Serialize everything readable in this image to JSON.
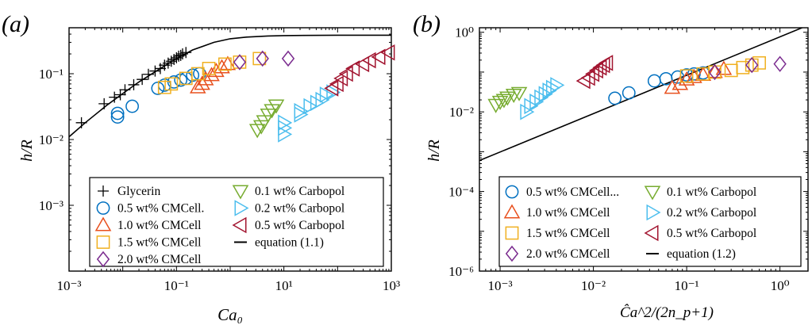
{
  "figure": {
    "panels": [
      {
        "label": "(a)",
        "xlabel": "Ca₀",
        "ylabel": "h/R"
      },
      {
        "label": "(b)",
        "xlabel": "Ĉa^2/(2n_p+1)",
        "ylabel": "h/R"
      }
    ]
  },
  "colors": {
    "Glycerin": "#000000",
    "CMC0.5": "#0070c0",
    "CMC1.0": "#e8501e",
    "CMC1.5": "#f0b020",
    "CMC2.0": "#7b2c8f",
    "Carb0.1": "#77ac30",
    "Carb0.2": "#4dbeee",
    "Carb0.5": "#a2142f",
    "equation": "#000000"
  },
  "chart_data": [
    {
      "type": "scatter",
      "panel": "(a)",
      "xlabel": "Ca₀",
      "ylabel": "h/R",
      "xscale": "log",
      "yscale": "log",
      "xlim": [
        0.001,
        1000
      ],
      "ylim": [
        0.0001,
        0.5
      ],
      "xticks": [
        "10⁻³",
        "10⁻¹",
        "10¹",
        "10³"
      ],
      "yticks": [
        "10⁻³",
        "10⁻²",
        "10⁻¹"
      ],
      "legend_position": "bottom",
      "legend": [
        "Glycerin",
        "0.5 wt% CMCell.",
        "1.0 wt% CMCell",
        "1.5 wt% CMCell",
        "2.0 wt% CMCell",
        "0.1 wt% Carbopol",
        "0.2 wt% Carbopol",
        "0.5 wt% Carbopol",
        "equation (1.1)"
      ],
      "series": [
        {
          "name": "Glycerin",
          "marker": "plus",
          "color_key": "Glycerin",
          "points": [
            [
              0.0017,
              0.018
            ],
            [
              0.0045,
              0.035
            ],
            [
              0.007,
              0.044
            ],
            [
              0.009,
              0.048
            ],
            [
              0.011,
              0.057
            ],
            [
              0.016,
              0.068
            ],
            [
              0.023,
              0.082
            ],
            [
              0.03,
              0.098
            ],
            [
              0.04,
              0.11
            ],
            [
              0.05,
              0.12
            ],
            [
              0.06,
              0.135
            ],
            [
              0.07,
              0.145
            ],
            [
              0.08,
              0.155
            ],
            [
              0.09,
              0.165
            ],
            [
              0.1,
              0.175
            ],
            [
              0.11,
              0.185
            ],
            [
              0.12,
              0.19
            ],
            [
              0.13,
              0.2
            ],
            [
              0.15,
              0.21
            ]
          ]
        },
        {
          "name": "0.5 wt% CMCell.",
          "marker": "circle",
          "color_key": "CMC0.5",
          "points": [
            [
              0.008,
              0.022
            ],
            [
              0.008,
              0.025
            ],
            [
              0.015,
              0.032
            ],
            [
              0.045,
              0.06
            ],
            [
              0.06,
              0.067
            ],
            [
              0.09,
              0.075
            ],
            [
              0.12,
              0.08
            ],
            [
              0.15,
              0.085
            ],
            [
              0.2,
              0.095
            ],
            [
              0.27,
              0.1
            ]
          ]
        },
        {
          "name": "1.0 wt% CMCell",
          "marker": "triangle-up",
          "color_key": "CMC1.0",
          "points": [
            [
              0.25,
              0.062
            ],
            [
              0.3,
              0.07
            ],
            [
              0.35,
              0.082
            ],
            [
              0.45,
              0.095
            ],
            [
              0.55,
              0.11
            ],
            [
              0.7,
              0.125
            ],
            [
              0.9,
              0.14
            ]
          ]
        },
        {
          "name": "1.5 wt% CMCell",
          "marker": "square",
          "color_key": "CMC1.5",
          "points": [
            [
              0.06,
              0.062
            ],
            [
              0.08,
              0.07
            ],
            [
              0.15,
              0.085
            ],
            [
              0.25,
              0.1
            ],
            [
              0.4,
              0.12
            ],
            [
              0.8,
              0.14
            ],
            [
              1.5,
              0.15
            ],
            [
              3.5,
              0.17
            ]
          ]
        },
        {
          "name": "2.0 wt% CMCell",
          "marker": "diamond",
          "color_key": "CMC2.0",
          "points": [
            [
              1.5,
              0.15
            ],
            [
              4,
              0.17
            ],
            [
              12,
              0.17
            ]
          ]
        },
        {
          "name": "0.1 wt% Carbopol",
          "marker": "triangle-down",
          "color_key": "Carb0.1",
          "points": [
            [
              3.2,
              0.014
            ],
            [
              3.8,
              0.016
            ],
            [
              4.3,
              0.019
            ],
            [
              5.1,
              0.024
            ],
            [
              6,
              0.028
            ],
            [
              7.2,
              0.033
            ]
          ]
        },
        {
          "name": "0.2 wt% Carbopol",
          "marker": "triangle-right",
          "color_key": "Carb0.2",
          "points": [
            [
              10,
              0.012
            ],
            [
              10,
              0.015
            ],
            [
              10,
              0.018
            ],
            [
              20,
              0.024
            ],
            [
              20,
              0.027
            ],
            [
              30,
              0.032
            ],
            [
              40,
              0.036
            ],
            [
              50,
              0.04
            ],
            [
              60,
              0.048
            ],
            [
              80,
              0.052
            ]
          ]
        },
        {
          "name": "0.5 wt% Carbopol",
          "marker": "triangle-left",
          "color_key": "Carb0.5",
          "points": [
            [
              80,
              0.06
            ],
            [
              100,
              0.07
            ],
            [
              120,
              0.085
            ],
            [
              150,
              0.1
            ],
            [
              200,
              0.12
            ],
            [
              300,
              0.14
            ],
            [
              400,
              0.16
            ],
            [
              600,
              0.18
            ],
            [
              900,
              0.21
            ]
          ]
        }
      ],
      "lines": [
        {
          "name": "equation (1.1)",
          "color_key": "equation",
          "points": [
            [
              0.001,
              0.011
            ],
            [
              0.002,
              0.018
            ],
            [
              0.005,
              0.033
            ],
            [
              0.01,
              0.05
            ],
            [
              0.02,
              0.075
            ],
            [
              0.05,
              0.12
            ],
            [
              0.1,
              0.17
            ],
            [
              0.2,
              0.23
            ],
            [
              0.5,
              0.3
            ],
            [
              1,
              0.34
            ],
            [
              2,
              0.36
            ],
            [
              5,
              0.375
            ],
            [
              10,
              0.38
            ],
            [
              100,
              0.385
            ],
            [
              1000,
              0.385
            ]
          ]
        }
      ]
    },
    {
      "type": "scatter",
      "panel": "(b)",
      "xlabel": "Ĉa^2/(2n_p+1)",
      "ylabel": "h/R",
      "xscale": "log",
      "yscale": "log",
      "xlim": [
        0.0006,
        2
      ],
      "ylim": [
        1e-06,
        1.3
      ],
      "xticks": [
        "10⁻³",
        "10⁻²",
        "10⁻¹",
        "10⁰"
      ],
      "yticks": [
        "10⁻⁶",
        "10⁻⁴",
        "10⁻²",
        "10⁰"
      ],
      "legend_position": "bottom",
      "legend": [
        "0.5 wt% CMCell...",
        "1.0 wt% CMCell",
        "1.5 wt% CMCell",
        "2.0 wt% CMCell",
        "0.1 wt% Carbopol",
        "0.2 wt% Carbopol",
        "0.5 wt% Carbopol",
        "equation (1.2)"
      ],
      "series": [
        {
          "name": "0.5 wt% CMCell...",
          "marker": "circle",
          "color_key": "CMC0.5",
          "points": [
            [
              0.017,
              0.022
            ],
            [
              0.024,
              0.03
            ],
            [
              0.045,
              0.06
            ],
            [
              0.06,
              0.068
            ],
            [
              0.08,
              0.075
            ],
            [
              0.1,
              0.085
            ],
            [
              0.12,
              0.09
            ],
            [
              0.15,
              0.095
            ]
          ]
        },
        {
          "name": "1.0 wt% CMCell",
          "marker": "triangle-up",
          "color_key": "CMC1.0",
          "points": [
            [
              0.07,
              0.04
            ],
            [
              0.085,
              0.05
            ],
            [
              0.1,
              0.065
            ],
            [
              0.12,
              0.075
            ],
            [
              0.15,
              0.085
            ],
            [
              0.2,
              0.1
            ],
            [
              0.25,
              0.12
            ]
          ]
        },
        {
          "name": "1.5 wt% CMCell",
          "marker": "square",
          "color_key": "CMC1.5",
          "points": [
            [
              0.1,
              0.08
            ],
            [
              0.15,
              0.09
            ],
            [
              0.2,
              0.1
            ],
            [
              0.3,
              0.11
            ],
            [
              0.4,
              0.13
            ],
            [
              0.5,
              0.15
            ],
            [
              0.6,
              0.17
            ]
          ]
        },
        {
          "name": "2.0 wt% CMCell",
          "marker": "diamond",
          "color_key": "CMC2.0",
          "points": [
            [
              0.2,
              0.1
            ],
            [
              0.5,
              0.15
            ],
            [
              1,
              0.16
            ]
          ]
        },
        {
          "name": "0.1 wt% Carbopol",
          "marker": "triangle-down",
          "color_key": "Carb0.1",
          "points": [
            [
              0.0009,
              0.015
            ],
            [
              0.001,
              0.018
            ],
            [
              0.0011,
              0.02
            ],
            [
              0.0012,
              0.023
            ],
            [
              0.0014,
              0.027
            ],
            [
              0.0016,
              0.03
            ]
          ]
        },
        {
          "name": "0.2 wt% Carbopol",
          "marker": "triangle-right",
          "color_key": "Carb0.2",
          "points": [
            [
              0.0019,
              0.01
            ],
            [
              0.0021,
              0.014
            ],
            [
              0.0024,
              0.018
            ],
            [
              0.0027,
              0.023
            ],
            [
              0.003,
              0.028
            ],
            [
              0.0033,
              0.034
            ],
            [
              0.0036,
              0.04
            ],
            [
              0.004,
              0.047
            ]
          ]
        },
        {
          "name": "0.5 wt% Carbopol",
          "marker": "triangle-left",
          "color_key": "Carb0.5",
          "points": [
            [
              0.008,
              0.06
            ],
            [
              0.009,
              0.072
            ],
            [
              0.01,
              0.09
            ],
            [
              0.011,
              0.11
            ],
            [
              0.012,
              0.13
            ],
            [
              0.013,
              0.15
            ],
            [
              0.014,
              0.17
            ]
          ]
        }
      ],
      "lines": [
        {
          "name": "equation (1.2)",
          "color_key": "equation",
          "points": [
            [
              0.0006,
              0.0006
            ],
            [
              2,
              1.5
            ]
          ]
        }
      ]
    }
  ]
}
